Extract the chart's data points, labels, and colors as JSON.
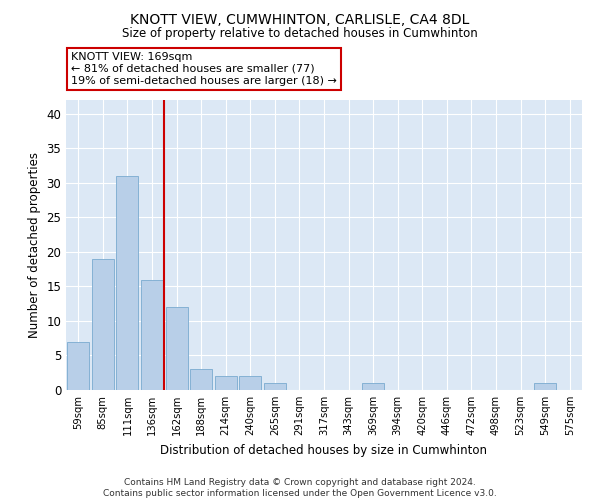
{
  "title": "KNOTT VIEW, CUMWHINTON, CARLISLE, CA4 8DL",
  "subtitle": "Size of property relative to detached houses in Cumwhinton",
  "xlabel": "Distribution of detached houses by size in Cumwhinton",
  "ylabel": "Number of detached properties",
  "footer_line1": "Contains HM Land Registry data © Crown copyright and database right 2024.",
  "footer_line2": "Contains public sector information licensed under the Open Government Licence v3.0.",
  "categories": [
    "59sqm",
    "85sqm",
    "111sqm",
    "136sqm",
    "162sqm",
    "188sqm",
    "214sqm",
    "240sqm",
    "265sqm",
    "291sqm",
    "317sqm",
    "343sqm",
    "369sqm",
    "394sqm",
    "420sqm",
    "446sqm",
    "472sqm",
    "498sqm",
    "523sqm",
    "549sqm",
    "575sqm"
  ],
  "values": [
    7,
    19,
    31,
    16,
    12,
    3,
    2,
    2,
    1,
    0,
    0,
    0,
    1,
    0,
    0,
    0,
    0,
    0,
    0,
    1,
    0
  ],
  "bar_color": "#b8cfe8",
  "bar_edge_color": "#7aaad0",
  "background_color": "#dce8f5",
  "grid_color": "#ffffff",
  "annotation_text": "KNOTT VIEW: 169sqm\n← 81% of detached houses are smaller (77)\n19% of semi-detached houses are larger (18) →",
  "annotation_box_color": "#ffffff",
  "annotation_box_edge": "#cc0000",
  "vline_color": "#cc0000",
  "ylim": [
    0,
    42
  ],
  "yticks": [
    0,
    5,
    10,
    15,
    20,
    25,
    30,
    35,
    40
  ]
}
